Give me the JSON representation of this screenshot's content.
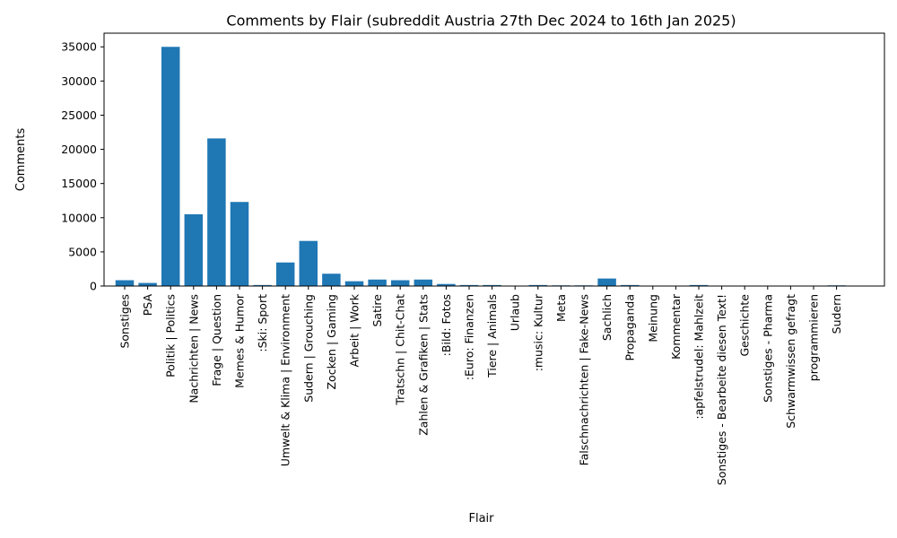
{
  "chart_data": {
    "type": "bar",
    "title": "Comments by Flair (subreddit Austria 27th Dec 2024 to 16th Jan 2025)",
    "xlabel": "Flair",
    "ylabel": "Comments",
    "ylim": [
      0,
      37000
    ],
    "yticks": [
      0,
      5000,
      10000,
      15000,
      20000,
      25000,
      30000,
      35000
    ],
    "ytick_labels": [
      "0",
      "5000",
      "10000",
      "15000",
      "20000",
      "25000",
      "30000",
      "35000"
    ],
    "bar_color": "#1f77b4",
    "grid": false,
    "categories": [
      "Sonstiges",
      "PSA",
      "Politik | Politics",
      "Nachrichten | News",
      "Frage | Question",
      "Memes & Humor",
      ":Ski: Sport",
      "Umwelt & Klima | Environment",
      "Sudern | Grouching",
      "Zocken | Gaming",
      "Arbeit | Work",
      "Satire",
      "Tratschn | Chit-Chat",
      "Zahlen & Grafiken | Stats",
      ":Bild: Fotos",
      ":Euro: Finanzen",
      "Tiere | Animals",
      "Urlaub",
      ":music: Kultur",
      "Meta",
      "Falschnachrichten | Fake-News",
      "Sachlich",
      "Propaganda",
      "Meinung",
      "Kommentar",
      ":apfelstrudel: Mahlzeit",
      "Sonstiges - Bearbeite diesen Text!",
      "Geschichte",
      "Sonstiges - Pharma",
      "Schwarmwissen gefragt",
      "programmieren",
      "Sudern"
    ],
    "values": [
      850,
      450,
      35000,
      10500,
      21600,
      12300,
      150,
      3450,
      6600,
      1800,
      700,
      950,
      850,
      950,
      300,
      150,
      150,
      20,
      150,
      100,
      100,
      1100,
      150,
      20,
      20,
      150,
      10,
      10,
      10,
      10,
      10,
      100
    ]
  }
}
